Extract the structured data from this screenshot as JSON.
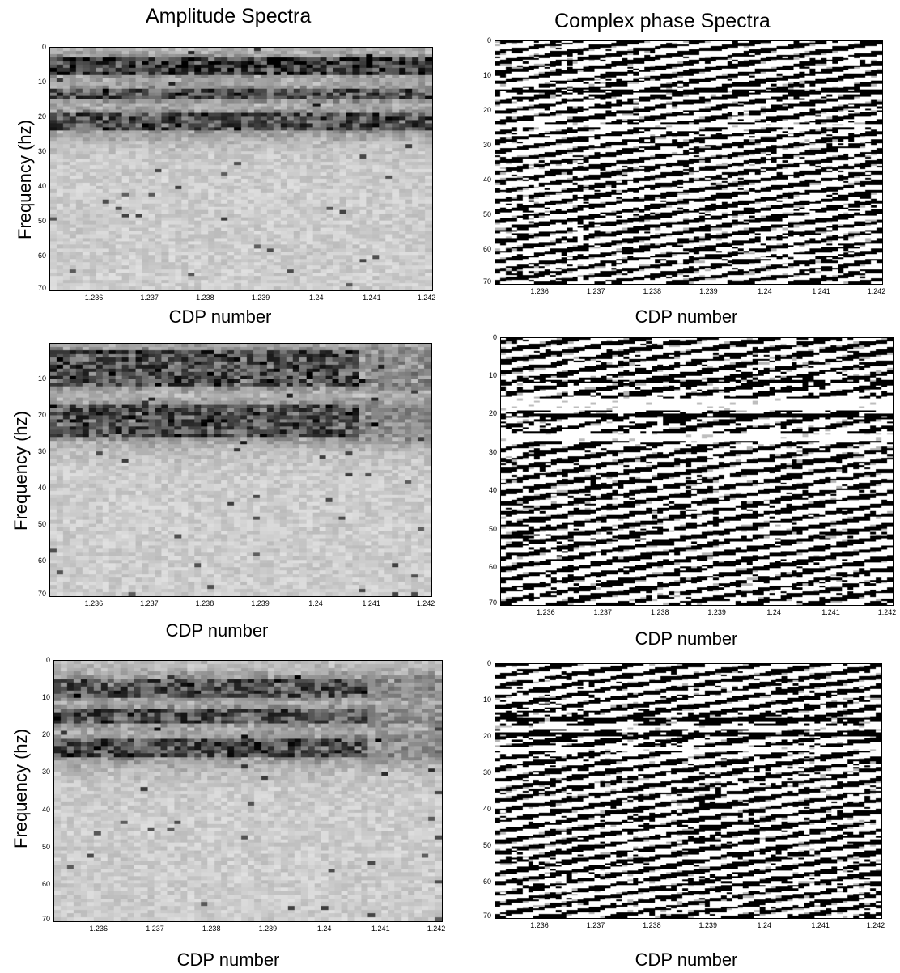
{
  "titles": {
    "amplitude": "Amplitude Spectra",
    "phase": "Complex phase Spectra"
  },
  "colors": {
    "background": "#ffffff",
    "text": "#000000",
    "gray_background": "#c8c8c8",
    "dark": "#000000"
  },
  "chart_data": [
    {
      "type": "heatmap",
      "id": "amp-1",
      "title": "Amplitude Spectra",
      "xlabel": "CDP number",
      "ylabel": "Frequency (hz)",
      "xlim": [
        1.2352,
        1.2421
      ],
      "ylim": [
        70,
        0
      ],
      "xticks": [
        "1.236",
        "1.237",
        "1.238",
        "1.239",
        "1.24",
        "1.241",
        "1.242"
      ],
      "yticks": [
        "0",
        "10",
        "20",
        "30",
        "40",
        "50",
        "60",
        "70"
      ],
      "colormap": "gray (dark = high)",
      "high_energy_bands_hz": [
        [
          3,
          8
        ],
        [
          12,
          15
        ],
        [
          19,
          24
        ]
      ]
    },
    {
      "type": "heatmap",
      "id": "phase-1",
      "xlabel": "CDP number",
      "ylabel": "",
      "xlim": [
        1.2352,
        1.2421
      ],
      "ylim": [
        70,
        0
      ],
      "xticks": [
        "1.236",
        "1.237",
        "1.238",
        "1.239",
        "1.24",
        "1.241",
        "1.242"
      ],
      "yticks": [
        "0",
        "10",
        "20",
        "30",
        "40",
        "50",
        "60",
        "70"
      ],
      "colormap": "binary",
      "coherent_bands_hz": [
        [
          14,
          15
        ],
        [
          24,
          25
        ]
      ]
    },
    {
      "type": "heatmap",
      "id": "amp-2",
      "xlabel": "CDP number",
      "ylabel": "Frequency (hz)",
      "xlim": [
        1.2352,
        1.2421
      ],
      "ylim": [
        70,
        0
      ],
      "xticks": [
        "1.236",
        "1.237",
        "1.238",
        "1.239",
        "1.24",
        "1.241",
        "1.242"
      ],
      "yticks": [
        "10",
        "20",
        "30",
        "40",
        "50",
        "60",
        "70"
      ],
      "colormap": "gray (dark = high)",
      "high_energy_bands_hz": [
        [
          2,
          12
        ],
        [
          17,
          26
        ]
      ]
    },
    {
      "type": "heatmap",
      "id": "phase-2",
      "xlabel": "CDP number",
      "ylabel": "",
      "xlim": [
        1.2352,
        1.2421
      ],
      "ylim": [
        70,
        0
      ],
      "xticks": [
        "1.236",
        "1.237",
        "1.238",
        "1.239",
        "1.24",
        "1.241",
        "1.242"
      ],
      "yticks": [
        "0",
        "10",
        "20",
        "30",
        "40",
        "50",
        "60",
        "70"
      ],
      "colormap": "binary",
      "coherent_bands_hz": [
        [
          11,
          12
        ],
        [
          16,
          19
        ],
        [
          20,
          21
        ],
        [
          25,
          27
        ]
      ]
    },
    {
      "type": "heatmap",
      "id": "amp-3",
      "xlabel": "CDP number",
      "ylabel": "Frequency (hz)",
      "xlim": [
        1.2352,
        1.2421
      ],
      "ylim": [
        70,
        0
      ],
      "xticks": [
        "1.236",
        "1.237",
        "1.238",
        "1.239",
        "1.24",
        "1.241",
        "1.242"
      ],
      "yticks": [
        "0",
        "10",
        "20",
        "30",
        "40",
        "50",
        "60",
        "70"
      ],
      "colormap": "gray (dark = high)",
      "high_energy_bands_hz": [
        [
          5,
          10
        ],
        [
          13,
          17
        ],
        [
          21,
          26
        ]
      ]
    },
    {
      "type": "heatmap",
      "id": "phase-3",
      "xlabel": "CDP number",
      "ylabel": "",
      "xlim": [
        1.2352,
        1.2421
      ],
      "ylim": [
        70,
        0
      ],
      "xticks": [
        "1.236",
        "1.237",
        "1.238",
        "1.239",
        "1.24",
        "1.241",
        "1.242"
      ],
      "yticks": [
        "0",
        "10",
        "20",
        "30",
        "40",
        "50",
        "60",
        "70"
      ],
      "colormap": "binary",
      "coherent_bands_hz": [
        [
          15,
          16
        ],
        [
          17,
          18
        ],
        [
          19,
          20
        ],
        [
          23,
          24
        ]
      ]
    }
  ]
}
